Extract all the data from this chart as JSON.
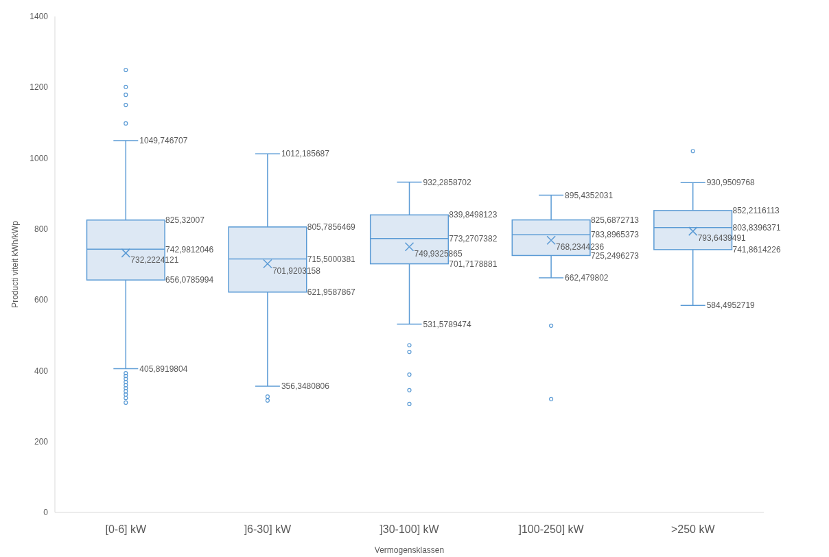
{
  "chart_data": {
    "type": "box",
    "xlabel": "Vermogensklassen",
    "ylabel": "Producti viteit kWh/kWp",
    "categories": [
      "[0-6] kW",
      "]6-30] kW",
      "]30-100] kW",
      "]100-250] kW",
      ">250 kW"
    ],
    "color": "#5b9bd5",
    "ylim": [
      0,
      1400
    ],
    "yticks": [
      0,
      200,
      400,
      600,
      800,
      1000,
      1200,
      1400
    ],
    "boxes": [
      {
        "low": 405.8919804,
        "q1": 656.0785994,
        "median": 742.9812046,
        "q3": 825.32007,
        "high": 1049.746707,
        "mean": 732.2224121,
        "outliers": [
          1249,
          1201,
          1179,
          1150,
          1098,
          393,
          385,
          377,
          368,
          359,
          351,
          342,
          333,
          323,
          310
        ]
      },
      {
        "low": 356.3480806,
        "q1": 621.9587867,
        "median": 715.5000381,
        "q3": 805.7856469,
        "high": 1012.185687,
        "mean": 701.9203158,
        "outliers": [
          327,
          316
        ]
      },
      {
        "low": 531.5789474,
        "q1": 701.7178881,
        "median": 773.2707382,
        "q3": 839.8498123,
        "high": 932.2858702,
        "mean": 749.9325865,
        "outliers": [
          472,
          453,
          389,
          345,
          306
        ]
      },
      {
        "low": 662.479802,
        "q1": 725.2496273,
        "median": 783.8965373,
        "q3": 825.6872713,
        "high": 895.4352031,
        "mean": 768.2344236,
        "outliers": [
          527,
          320
        ]
      },
      {
        "low": 584.4952719,
        "q1": 741.8614226,
        "median": 803.8396371,
        "q3": 852.2116113,
        "high": 930.9509768,
        "mean": 793.6439491,
        "outliers": [
          1020
        ]
      }
    ],
    "annotations": [
      "1049,746707",
      "825,32007",
      "742,9812046",
      "732,2224121",
      "656,0785994",
      "405,8919804",
      "1012,185687",
      "805,7856469",
      "715,5000381",
      "701,9203158",
      "621,9587867",
      "356,3480806",
      "932,2858702",
      "839,8498123",
      "773,2707382",
      "749,9325865",
      "701,7178881",
      "531,5789474",
      "895,4352031",
      "825,6872713",
      "783,8965373",
      "768,2344236",
      "725,2496273",
      "662,479802",
      "930,9509768",
      "852,2116113",
      "803,8396371",
      "793,6439491",
      "741,8614226",
      "584,4952719"
    ]
  }
}
